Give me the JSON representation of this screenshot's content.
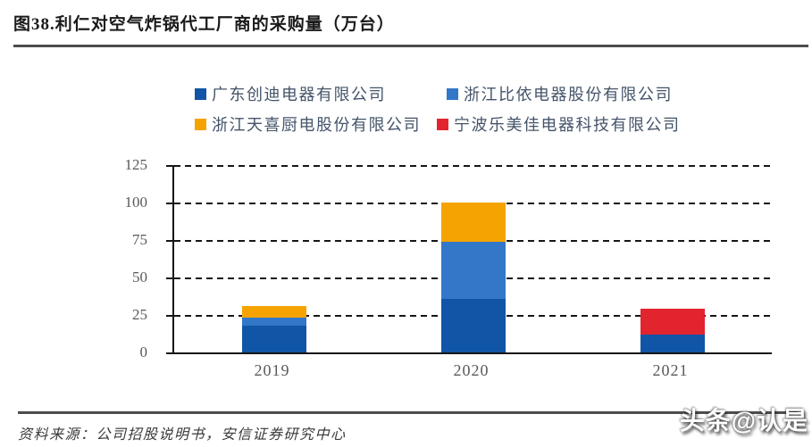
{
  "figure": {
    "title": "图38.利仁对空气炸锅代工厂商的采购量（万台）",
    "source": "资料来源：公司招股说明书，安信证券研究中心",
    "watermark": "头条@认是"
  },
  "colors": {
    "axis_line": "#161616",
    "axis_label": "#595959",
    "legend_text": "#44546A",
    "rule": "#4d4d4d"
  },
  "chart_data": {
    "type": "bar",
    "stacked": true,
    "title": "图38.利仁对空气炸锅代工厂商的采购量（万台）",
    "xlabel": "",
    "ylabel": "",
    "categories": [
      "2019",
      "2020",
      "2021"
    ],
    "series": [
      {
        "name": "广东创迪电器有限公司",
        "color": "#1155A6",
        "values": [
          18,
          36,
          12
        ]
      },
      {
        "name": "浙江比依电器股份有限公司",
        "color": "#3377C9",
        "values": [
          5,
          38,
          0
        ]
      },
      {
        "name": "浙江天喜厨电股份有限公司",
        "color": "#F5A300",
        "values": [
          8,
          26,
          0
        ]
      },
      {
        "name": "宁波乐美佳电器科技有限公司",
        "color": "#E2242F",
        "values": [
          0,
          0,
          17
        ]
      }
    ],
    "totals": [
      31,
      100,
      29
    ],
    "ylim": [
      0,
      125
    ],
    "yticks": [
      0,
      25,
      50,
      75,
      100,
      125
    ],
    "grid": "horizontal-dashed",
    "legend_position": "top",
    "legend_rows": [
      [
        0,
        1
      ],
      [
        2,
        3
      ]
    ]
  }
}
